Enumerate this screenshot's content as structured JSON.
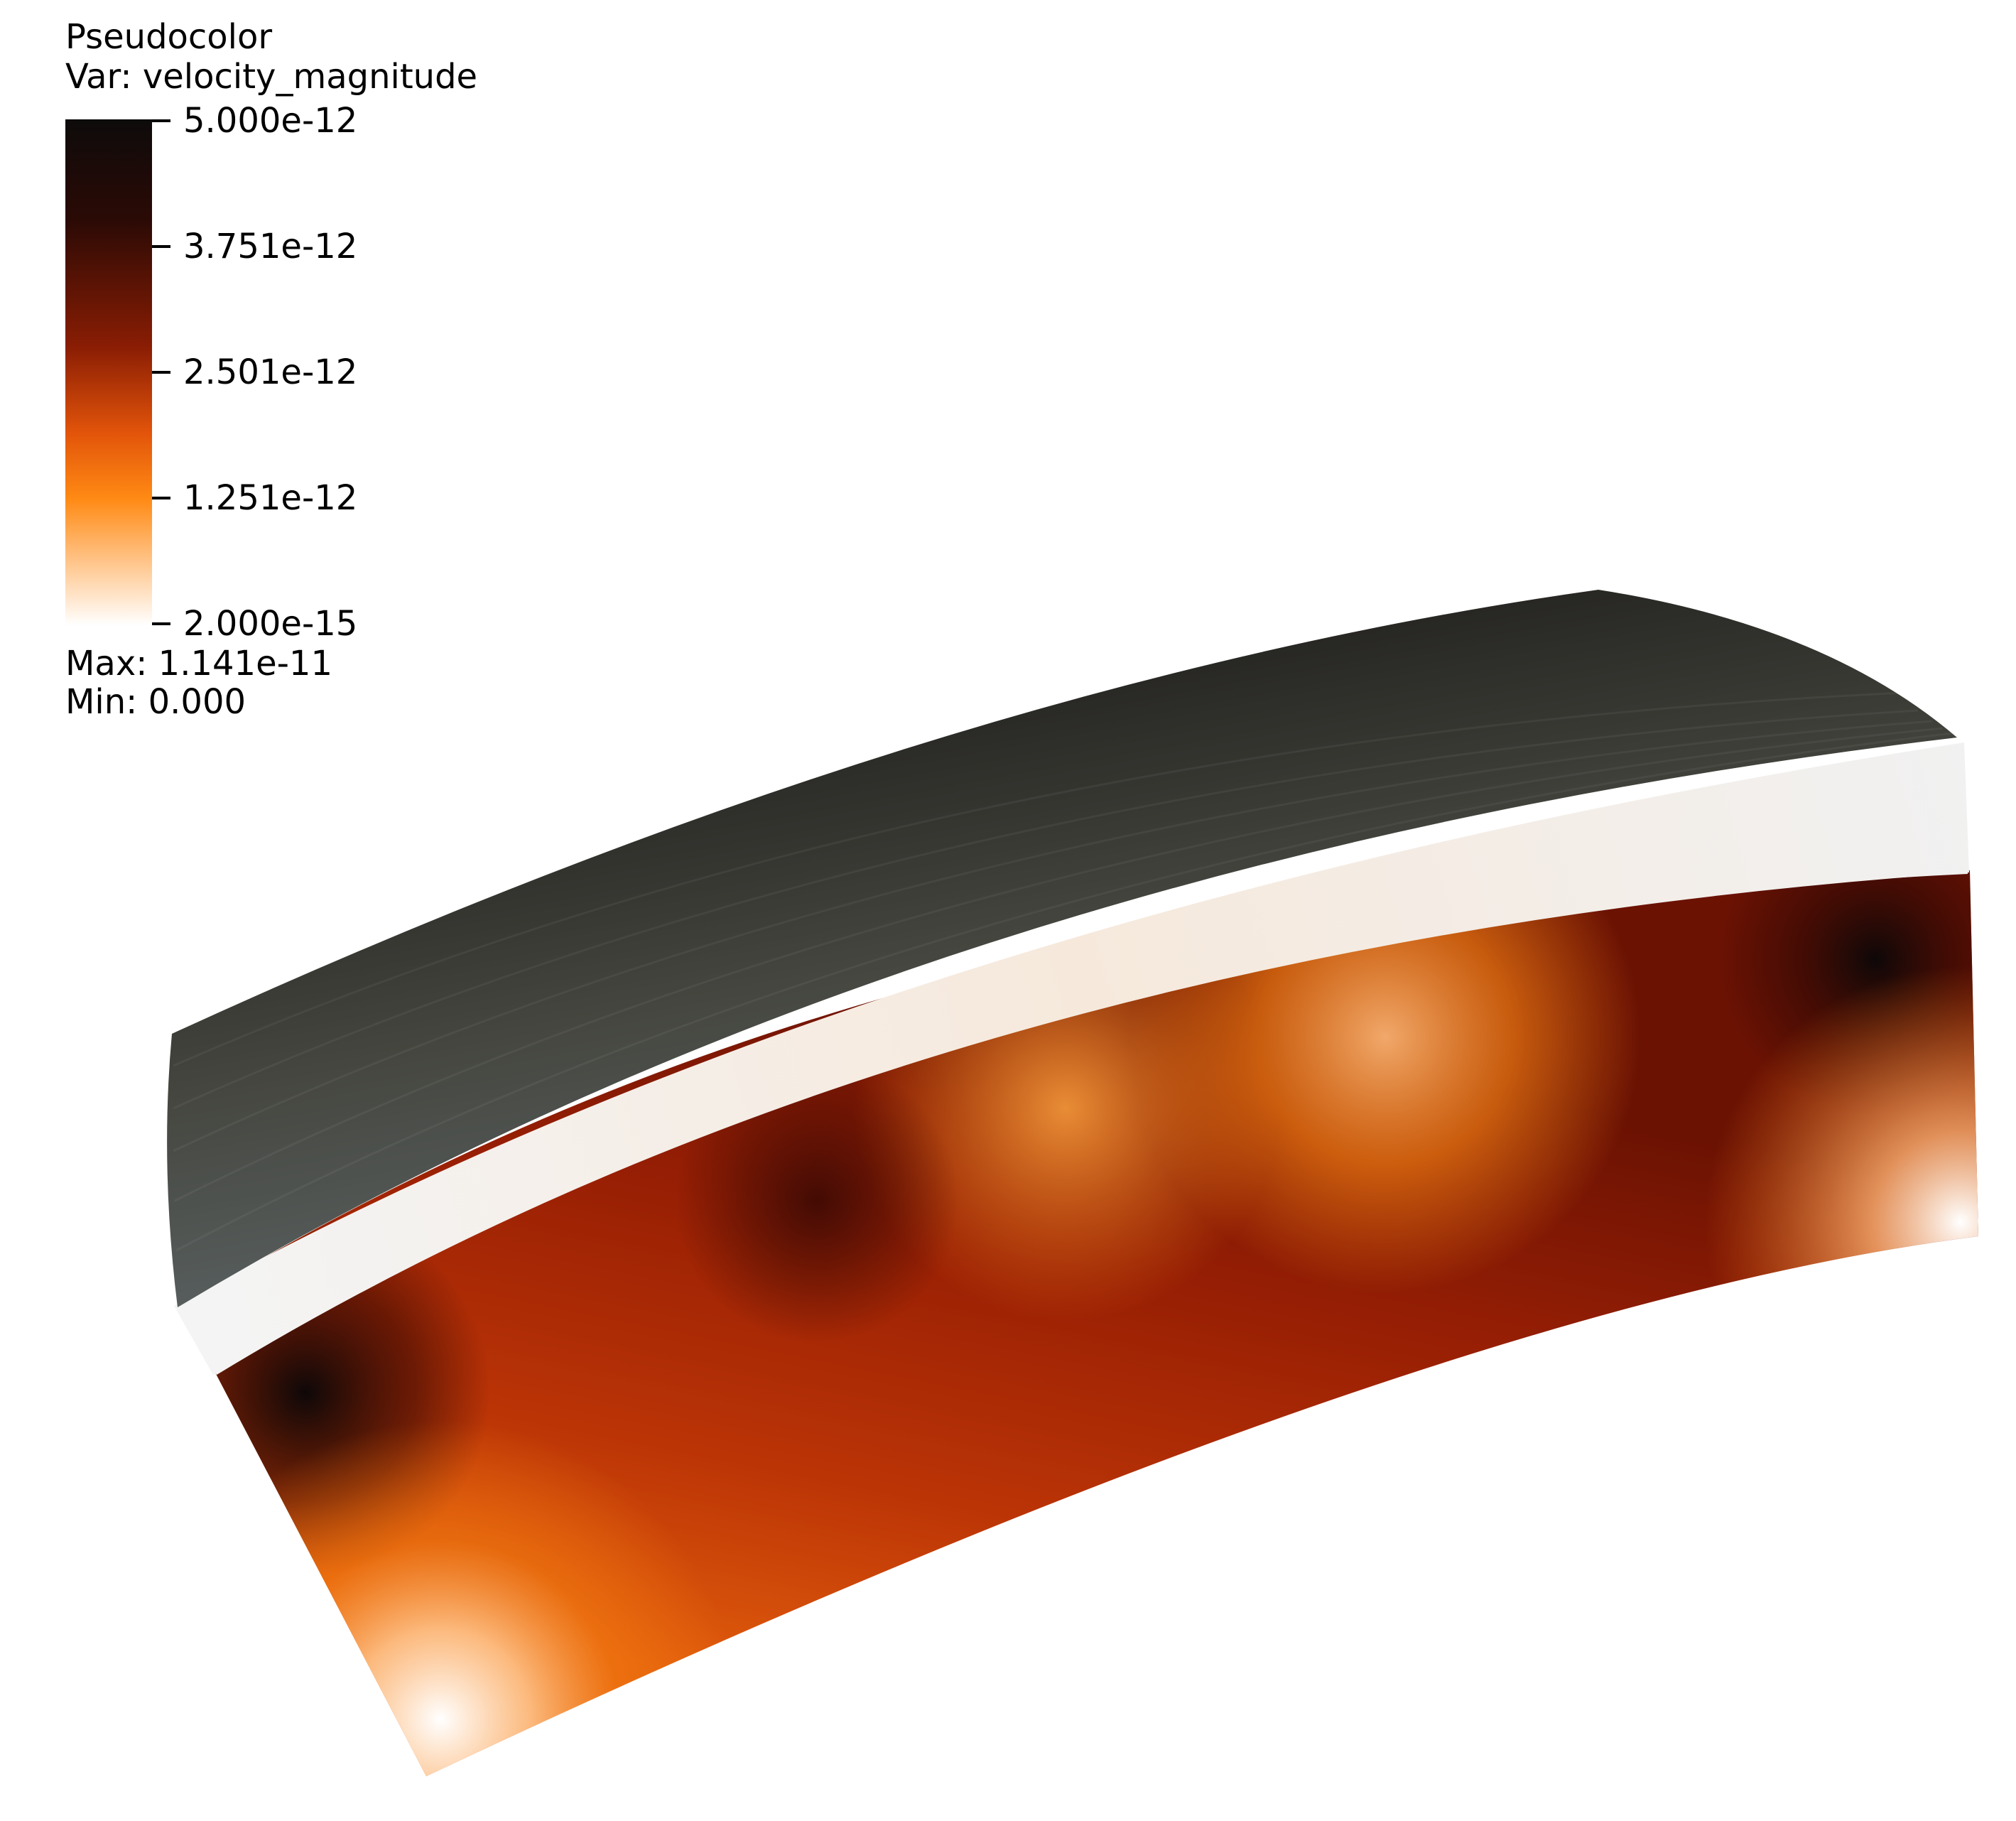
{
  "legend": {
    "plot_type": "Pseudocolor",
    "variable_line": "Var: velocity_magnitude",
    "ticks": [
      "5.000e-12",
      "3.751e-12",
      "2.501e-12",
      "1.251e-12",
      "2.000e-15"
    ],
    "max_line": "Max:  1.141e-11",
    "min_line": "Min:  0.000"
  },
  "colormap": {
    "stops": [
      "#0d0b0b",
      "#2b0a05",
      "#8a1d04",
      "#e2540a",
      "#ff8a14",
      "#ffffff"
    ]
  }
}
